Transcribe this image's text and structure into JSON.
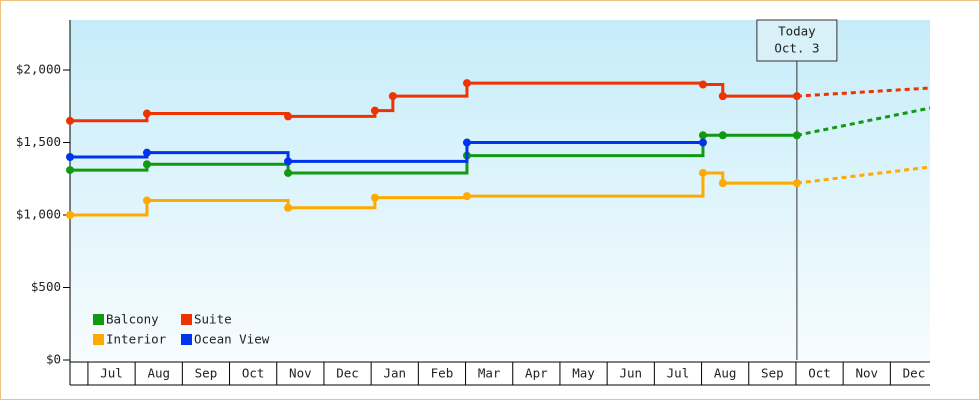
{
  "chart_data": {
    "type": "step-line",
    "xlim": [
      -0.38,
      17.84
    ],
    "ylim": [
      0,
      2345
    ],
    "yticks": [
      {
        "value": 0,
        "label": "$0"
      },
      {
        "value": 500,
        "label": "$500"
      },
      {
        "value": 1000,
        "label": "$1,000"
      },
      {
        "value": 1500,
        "label": "$1,500"
      },
      {
        "value": 2000,
        "label": "$2,000"
      }
    ],
    "xticks": [
      {
        "value": 0.5,
        "label": "Jul"
      },
      {
        "value": 1.5,
        "label": "Aug"
      },
      {
        "value": 2.5,
        "label": "Sep"
      },
      {
        "value": 3.5,
        "label": "Oct"
      },
      {
        "value": 4.5,
        "label": "Nov"
      },
      {
        "value": 5.5,
        "label": "Dec"
      },
      {
        "value": 6.5,
        "label": "Jan"
      },
      {
        "value": 7.5,
        "label": "Feb"
      },
      {
        "value": 8.5,
        "label": "Mar"
      },
      {
        "value": 9.5,
        "label": "Apr"
      },
      {
        "value": 10.5,
        "label": "May"
      },
      {
        "value": 11.5,
        "label": "Jun"
      },
      {
        "value": 12.5,
        "label": "Jul"
      },
      {
        "value": 13.5,
        "label": "Aug"
      },
      {
        "value": 14.5,
        "label": "Sep"
      },
      {
        "value": 15.5,
        "label": "Oct"
      },
      {
        "value": 16.5,
        "label": "Nov"
      },
      {
        "value": 17.5,
        "label": "Dec"
      }
    ],
    "annotation": {
      "x": 15.02,
      "lines": [
        "Today",
        "Oct. 3"
      ]
    },
    "legend": "bottom-left",
    "series": [
      {
        "name": "Balcony",
        "color": "#119911",
        "x": [
          -0.38,
          1.25,
          4.24,
          8.03,
          13.03,
          13.45,
          15.02
        ],
        "values": [
          1310,
          1350,
          1290,
          1410,
          1550,
          1550,
          1550
        ],
        "forecast": {
          "x": [
            15.02,
            17.84
          ],
          "values": [
            1550,
            1738
          ]
        }
      },
      {
        "name": "Suite",
        "color": "#ee3300",
        "x": [
          -0.38,
          1.25,
          4.24,
          6.08,
          6.46,
          8.03,
          13.03,
          13.45,
          15.02
        ],
        "values": [
          1650,
          1700,
          1680,
          1720,
          1820,
          1910,
          1900,
          1820,
          1820
        ],
        "forecast": {
          "x": [
            15.02,
            17.84
          ],
          "values": [
            1820,
            1876
          ]
        }
      },
      {
        "name": "Interior",
        "color": "#ffaa00",
        "x": [
          -0.38,
          1.25,
          4.24,
          6.08,
          8.03,
          13.03,
          13.45,
          15.02
        ],
        "values": [
          1000,
          1100,
          1050,
          1120,
          1130,
          1290,
          1220,
          1220
        ],
        "forecast": {
          "x": [
            15.02,
            17.84
          ],
          "values": [
            1220,
            1331
          ]
        }
      },
      {
        "name": "Ocean View",
        "color": "#0033ee",
        "x": [
          -0.38,
          1.25,
          4.24,
          8.03,
          13.03
        ],
        "values": [
          1400,
          1430,
          1370,
          1500,
          1500
        ]
      }
    ]
  }
}
